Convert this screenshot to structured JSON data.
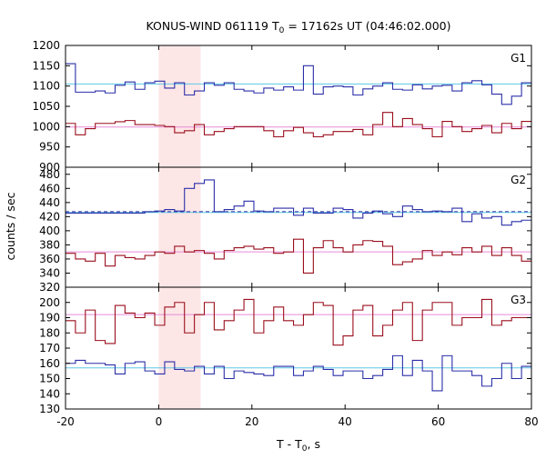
{
  "title_main": "KONUS-WIND 061119 T",
  "title_sub": "0",
  "title_rest": " = 17162s UT (04:46:02.000)",
  "ylabel": "counts / sec",
  "xlabel_main": "T - T",
  "xlabel_sub": "0",
  "xlabel_rest": ", s",
  "colors": {
    "blue": "#2b2fa8",
    "red": "#9b0e1c",
    "cyan": "#5fc8e6",
    "pink": "#e68ad8",
    "shade": "#fde6e6"
  },
  "chart_data": {
    "type": "line",
    "shaded_interval": [
      0,
      9
    ],
    "x_ticks": [
      -20,
      0,
      20,
      40,
      60,
      80
    ],
    "xlim": [
      -20,
      80
    ],
    "panels": [
      {
        "name": "G1",
        "ylim": [
          900,
          1200
        ],
        "yticks": [
          900,
          950,
          1000,
          1050,
          1100,
          1150,
          1200
        ],
        "series": [
          {
            "color": "blue",
            "values": [
              1155,
              1085,
              1085,
              1088,
              1083,
              1102,
              1110,
              1092,
              1108,
              1112,
              1095,
              1108,
              1078,
              1088,
              1108,
              1102,
              1108,
              1092,
              1088,
              1083,
              1095,
              1090,
              1098,
              1090,
              1150,
              1080,
              1098,
              1100,
              1098,
              1078,
              1093,
              1100,
              1108,
              1092,
              1090,
              1103,
              1093,
              1100,
              1102,
              1088,
              1108,
              1113,
              1103,
              1080,
              1055,
              1075,
              1108
            ]
          },
          {
            "color": "red",
            "values": [
              1008,
              980,
              995,
              1008,
              1008,
              1012,
              1015,
              1005,
              1005,
              1003,
              1000,
              985,
              990,
              1005,
              980,
              988,
              995,
              1000,
              1000,
              1000,
              990,
              975,
              990,
              998,
              985,
              975,
              980,
              988,
              988,
              993,
              980,
              1005,
              1035,
              1000,
              1020,
              1005,
              995,
              975,
              1013,
              1000,
              988,
              995,
              1003,
              985,
              1008,
              995,
              1013
            ]
          }
        ],
        "fits": [
          {
            "color": "cyan",
            "value": 1105,
            "dashed": false
          },
          {
            "color": "pink",
            "value": 999,
            "dashed": false
          }
        ]
      },
      {
        "name": "G2",
        "ylim": [
          320,
          490
        ],
        "yticks": [
          320,
          340,
          360,
          380,
          400,
          420,
          440,
          460,
          480
        ],
        "series": [
          {
            "color": "blue",
            "values": [
              425,
              425,
              425,
              425,
              425,
              425,
              425,
              425,
              427,
              428,
              430,
              428,
              460,
              467,
              472,
              427,
              430,
              435,
              442,
              428,
              427,
              432,
              432,
              422,
              432,
              425,
              425,
              432,
              430,
              418,
              425,
              428,
              424,
              420,
              435,
              430,
              427,
              428,
              427,
              432,
              413,
              424,
              418,
              420,
              408,
              413,
              415
            ]
          },
          {
            "color": "red",
            "values": [
              368,
              360,
              357,
              368,
              350,
              365,
              362,
              360,
              365,
              370,
              368,
              378,
              370,
              372,
              368,
              360,
              372,
              376,
              378,
              374,
              376,
              368,
              370,
              388,
              340,
              376,
              386,
              376,
              370,
              380,
              386,
              385,
              378,
              352,
              356,
              360,
              372,
              365,
              370,
              366,
              376,
              370,
              378,
              365,
              376,
              365,
              357
            ]
          }
        ],
        "fits": [
          {
            "color": "cyan",
            "value": 426,
            "dashed": false
          },
          {
            "color": "blue",
            "value": 427,
            "dashed": true
          },
          {
            "color": "pink",
            "value": 370,
            "dashed": false
          }
        ]
      },
      {
        "name": "G3",
        "ylim": [
          130,
          210
        ],
        "yticks": [
          130,
          140,
          150,
          160,
          170,
          180,
          190,
          200
        ],
        "series": [
          {
            "color": "red",
            "values": [
              188,
              180,
              195,
              175,
              173,
              198,
              193,
              190,
              193,
              185,
              197,
              200,
              180,
              192,
              200,
              182,
              188,
              195,
              202,
              180,
              188,
              197,
              188,
              185,
              192,
              200,
              198,
              172,
              178,
              195,
              198,
              178,
              185,
              195,
              200,
              175,
              195,
              200,
              200,
              185,
              190,
              190,
              202,
              185,
              188,
              190,
              190
            ]
          },
          {
            "color": "blue",
            "values": [
              160,
              162,
              160,
              160,
              159,
              153,
              160,
              161,
              155,
              153,
              161,
              156,
              155,
              158,
              153,
              158,
              150,
              155,
              154,
              153,
              152,
              158,
              158,
              152,
              155,
              158,
              156,
              152,
              155,
              155,
              150,
              152,
              156,
              165,
              152,
              162,
              155,
              142,
              165,
              155,
              155,
              152,
              145,
              150,
              160,
              150,
              158
            ]
          }
        ],
        "fits": [
          {
            "color": "cyan",
            "value": 157,
            "dashed": false
          },
          {
            "color": "pink",
            "value": 192,
            "dashed": false
          }
        ]
      }
    ]
  }
}
